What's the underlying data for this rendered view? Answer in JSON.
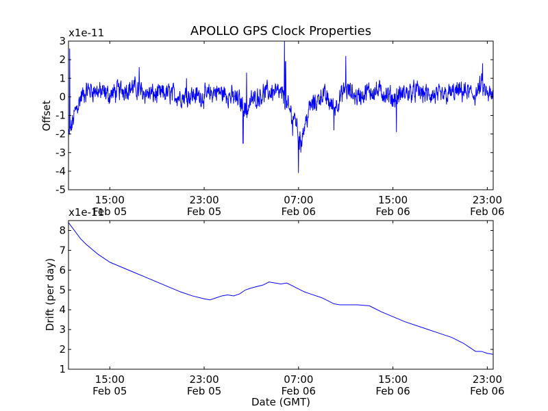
{
  "chart_data": [
    {
      "type": "line",
      "title": "APOLLO GPS Clock Properties",
      "ylabel": "Offset",
      "scale_label": "x1e-11",
      "ylim": [
        -5,
        3
      ],
      "yticks": [
        "3",
        "2",
        "1",
        "0",
        "-1",
        "-2",
        "-3",
        "-4",
        "-5"
      ],
      "ytick_values": [
        3,
        2,
        1,
        0,
        -1,
        -2,
        -3,
        -4,
        -5
      ],
      "xlim_hours": [
        11.5,
        47.5
      ],
      "xticks": [
        {
          "hours": 15,
          "time": "15:00",
          "date": "Feb 05"
        },
        {
          "hours": 23,
          "time": "23:00",
          "date": "Feb 05"
        },
        {
          "hours": 31,
          "time": "07:00",
          "date": "Feb 06"
        },
        {
          "hours": 39,
          "time": "15:00",
          "date": "Feb 06"
        },
        {
          "hours": 47,
          "time": "23:00",
          "date": "Feb 06"
        }
      ],
      "color": "#0000ff",
      "series_anchor_hours": [
        11.5,
        11.8,
        12.1,
        12.6,
        13.2,
        14,
        15,
        16,
        17,
        18,
        19,
        20,
        21,
        22,
        23,
        24,
        25,
        26,
        26.6,
        27,
        28,
        29,
        29.8,
        30,
        30.4,
        30.8,
        31.1,
        31.5,
        32,
        32.5,
        33,
        34,
        35,
        36,
        37,
        38,
        39,
        40,
        41,
        42,
        43,
        44,
        45,
        46,
        46.5,
        47,
        47.5
      ],
      "series_anchor_values": [
        -2.2,
        -1.5,
        -0.7,
        0.0,
        0.4,
        0.3,
        0.1,
        0.4,
        0.5,
        0.2,
        0.1,
        0.2,
        0.0,
        0.1,
        0.0,
        0.3,
        0.1,
        -0.2,
        -0.8,
        -0.2,
        0.2,
        0.3,
        0.0,
        -0.5,
        -0.9,
        -1.3,
        -2.5,
        -1.6,
        -0.5,
        -0.3,
        0.2,
        -0.6,
        0.4,
        0.0,
        0.3,
        0.3,
        -0.1,
        0.2,
        0.3,
        0.1,
        0.0,
        0.2,
        0.3,
        0.1,
        0.6,
        0.1,
        0.0
      ],
      "series_spikes": [
        {
          "hours": 11.6,
          "value": 2.6
        },
        {
          "hours": 17.5,
          "value": 1.6
        },
        {
          "hours": 21.5,
          "value": 1.0
        },
        {
          "hours": 26.3,
          "value": -2.5
        },
        {
          "hours": 26.6,
          "value": 1.3
        },
        {
          "hours": 29.8,
          "value": 3.0
        },
        {
          "hours": 29.9,
          "value": 1.9
        },
        {
          "hours": 30.5,
          "value": -2.1
        },
        {
          "hours": 31.0,
          "value": -4.1
        },
        {
          "hours": 31.2,
          "value": -3.0
        },
        {
          "hours": 35.0,
          "value": 2.2
        },
        {
          "hours": 34.0,
          "value": -1.8
        },
        {
          "hours": 46.6,
          "value": 1.8
        },
        {
          "hours": 39.3,
          "value": -1.9
        }
      ]
    },
    {
      "type": "line",
      "ylabel": "Drift (per day)",
      "scale_label": "x1e-11",
      "xlabel": "Date (GMT)",
      "ylim": [
        1,
        8.5
      ],
      "yticks": [
        "8",
        "7",
        "6",
        "5",
        "4",
        "3",
        "2",
        "1"
      ],
      "ytick_values": [
        8,
        7,
        6,
        5,
        4,
        3,
        2,
        1
      ],
      "xlim_hours": [
        11.5,
        47.5
      ],
      "xticks": [
        {
          "hours": 15,
          "time": "15:00",
          "date": "Feb 05"
        },
        {
          "hours": 23,
          "time": "23:00",
          "date": "Feb 05"
        },
        {
          "hours": 31,
          "time": "07:00",
          "date": "Feb 06"
        },
        {
          "hours": 39,
          "time": "15:00",
          "date": "Feb 06"
        },
        {
          "hours": 47,
          "time": "23:00",
          "date": "Feb 06"
        }
      ],
      "color": "#0000ff",
      "x_hours": [
        11.5,
        12,
        12.5,
        13,
        13.5,
        14,
        14.5,
        15,
        16,
        17,
        18,
        19,
        20,
        21,
        22,
        23,
        23.5,
        24,
        24.5,
        25,
        25.5,
        26,
        26.5,
        27,
        28,
        28.5,
        29,
        29.5,
        30,
        30.5,
        31,
        31.5,
        32,
        33,
        34,
        34.5,
        35,
        36,
        37,
        37.5,
        38,
        39,
        40,
        41,
        42,
        43,
        44,
        45,
        45.5,
        46,
        46.5,
        47,
        47.5
      ],
      "values": [
        8.4,
        8.0,
        7.6,
        7.3,
        7.05,
        6.8,
        6.6,
        6.4,
        6.15,
        5.9,
        5.65,
        5.4,
        5.15,
        4.9,
        4.7,
        4.55,
        4.5,
        4.6,
        4.7,
        4.75,
        4.7,
        4.8,
        5.0,
        5.1,
        5.25,
        5.4,
        5.35,
        5.3,
        5.35,
        5.2,
        5.05,
        4.9,
        4.8,
        4.6,
        4.3,
        4.25,
        4.25,
        4.25,
        4.2,
        4.05,
        3.9,
        3.65,
        3.4,
        3.2,
        3.0,
        2.8,
        2.6,
        2.3,
        2.1,
        1.9,
        1.9,
        1.8,
        1.75
      ]
    }
  ]
}
